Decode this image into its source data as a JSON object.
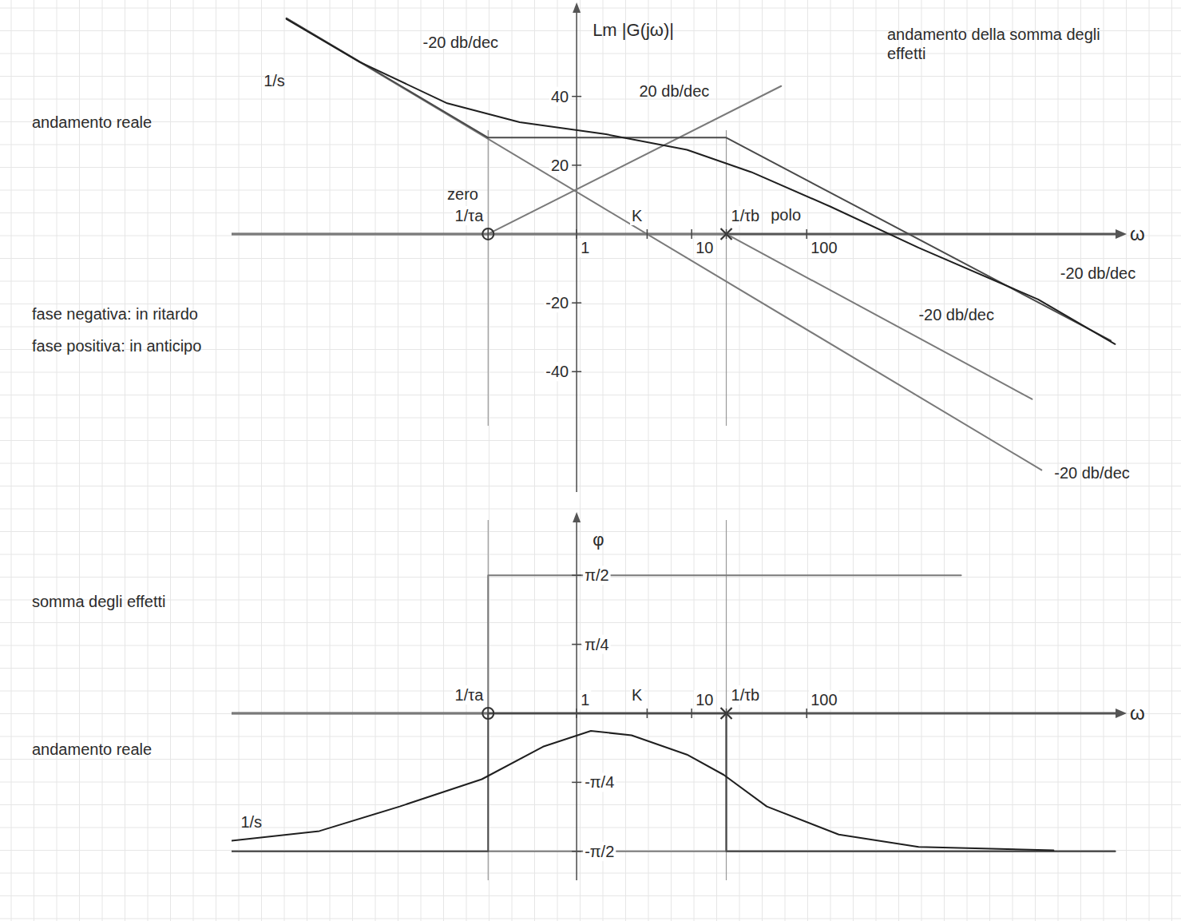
{
  "chart_data": [
    {
      "type": "line",
      "log": "x",
      "grid": false,
      "y_label": "Lm |G(jω)|",
      "x_label": "ω",
      "xlim": [
        0.001,
        50000
      ],
      "ylim": [
        -75,
        65
      ],
      "xticks": [
        {
          "value": 0.17,
          "label": "1/τa"
        },
        1,
        {
          "value": 4.1,
          "label": "K"
        },
        10,
        {
          "value": 20,
          "label": "1/τb"
        },
        100
      ],
      "yticks": [
        -40,
        -20,
        20,
        40
      ],
      "zeros": [
        0.17
      ],
      "poles": [
        20
      ],
      "series": [
        {
          "color": "#7a7a7a",
          "x": [
            0.003,
            11000
          ],
          "values": [
            62.7,
            -68.6
          ]
        },
        {
          "color": "#7a7a7a",
          "x": [
            0.001,
            0.17,
            60
          ],
          "values": [
            0,
            0,
            43
          ]
        },
        {
          "color": "#7a7a7a",
          "x": [
            0.001,
            20,
            9100
          ],
          "values": [
            0,
            0,
            -48
          ]
        },
        {
          "color": "#4a4a4a",
          "x": [
            0.003,
            0.17,
            20,
            44000
          ],
          "values": [
            62.7,
            28,
            28,
            -31
          ]
        },
        {
          "color": "#1f1f1f",
          "x": [
            0.003,
            0.013,
            0.075,
            0.32,
            1.8,
            9.1,
            33,
            160,
            940,
            10300,
            48000
          ],
          "values": [
            62.5,
            50,
            38,
            32.5,
            29,
            24.5,
            18,
            8,
            -4,
            -19,
            -32
          ]
        }
      ],
      "annotations": [
        {
          "text": "1/s",
          "x": 0.0019,
          "y": 43
        },
        {
          "text": "-20 db/dec",
          "x": 0.046,
          "y": 54
        },
        {
          "text": "andamento della somma degli effetti",
          "x": 500,
          "y": 56.5
        },
        {
          "text": "zero",
          "x": 0.075,
          "y": 10
        },
        {
          "text": "polo",
          "x": 48.7,
          "y": 4
        },
        {
          "text": "20 db/dec",
          "x": 3.5,
          "y": 40
        },
        {
          "text": "-20 db/dec",
          "x": 940,
          "y": -25
        },
        {
          "text": "-20 db/dec",
          "x": 16000,
          "y": -13
        },
        {
          "text": "-20 db/dec",
          "x": 14200,
          "y": -71
        }
      ],
      "notes": [
        "andamento reale",
        "fase negativa: in ritardo",
        "fase positiva: in anticipo"
      ]
    },
    {
      "type": "line",
      "log": "x",
      "grid": false,
      "y_label": "φ",
      "x_label": "ω",
      "xlim": [
        0.001,
        50000
      ],
      "ylim": [
        -1.9,
        2.2
      ],
      "xticks": [
        {
          "value": 0.17,
          "label": "1/τa"
        },
        1,
        {
          "value": 4.1,
          "label": "K"
        },
        10,
        {
          "value": 20,
          "label": "1/τb"
        },
        100
      ],
      "yticks": [
        {
          "value": 1.5708,
          "label": "π/2"
        },
        {
          "value": 0.7854,
          "label": "π/4"
        },
        {
          "value": -0.7854,
          "label": "-π/4"
        },
        {
          "value": -1.5708,
          "label": "-π/2"
        }
      ],
      "zeros": [
        0.17
      ],
      "poles": [
        20
      ],
      "series": [
        {
          "color": "#7a7a7a",
          "x": [
            0.001,
            48000
          ],
          "values": [
            -1.5708,
            -1.5708
          ]
        },
        {
          "color": "#7a7a7a",
          "x": [
            0.001,
            0.17,
            0.17,
            2200
          ],
          "values": [
            0,
            0,
            1.5708,
            1.5708
          ]
        },
        {
          "color": "#7a7a7a",
          "x": [
            0.001,
            20,
            20,
            48000
          ],
          "values": [
            0,
            0,
            -1.5708,
            -1.5708
          ]
        },
        {
          "color": "#4a4a4a",
          "x": [
            0.001,
            0.17,
            0.17,
            20,
            20,
            48000
          ],
          "values": [
            -1.5708,
            -1.5708,
            0,
            0,
            -1.5708,
            -1.5708
          ]
        },
        {
          "color": "#1f1f1f",
          "x": [
            0.001,
            0.0058,
            0.029,
            0.15,
            0.51,
            1.33,
            3,
            9.1,
            19,
            45,
            190,
            940,
            14000
          ],
          "values": [
            -1.45,
            -1.34,
            -1.06,
            -0.75,
            -0.38,
            -0.2,
            -0.25,
            -0.47,
            -0.7,
            -1.06,
            -1.38,
            -1.52,
            -1.56
          ]
        }
      ],
      "annotations": [
        {
          "text": "1/s",
          "x": 0.0012,
          "y": -1.3
        }
      ],
      "notes": [
        "somma degli effetti",
        "andamento reale"
      ]
    }
  ]
}
